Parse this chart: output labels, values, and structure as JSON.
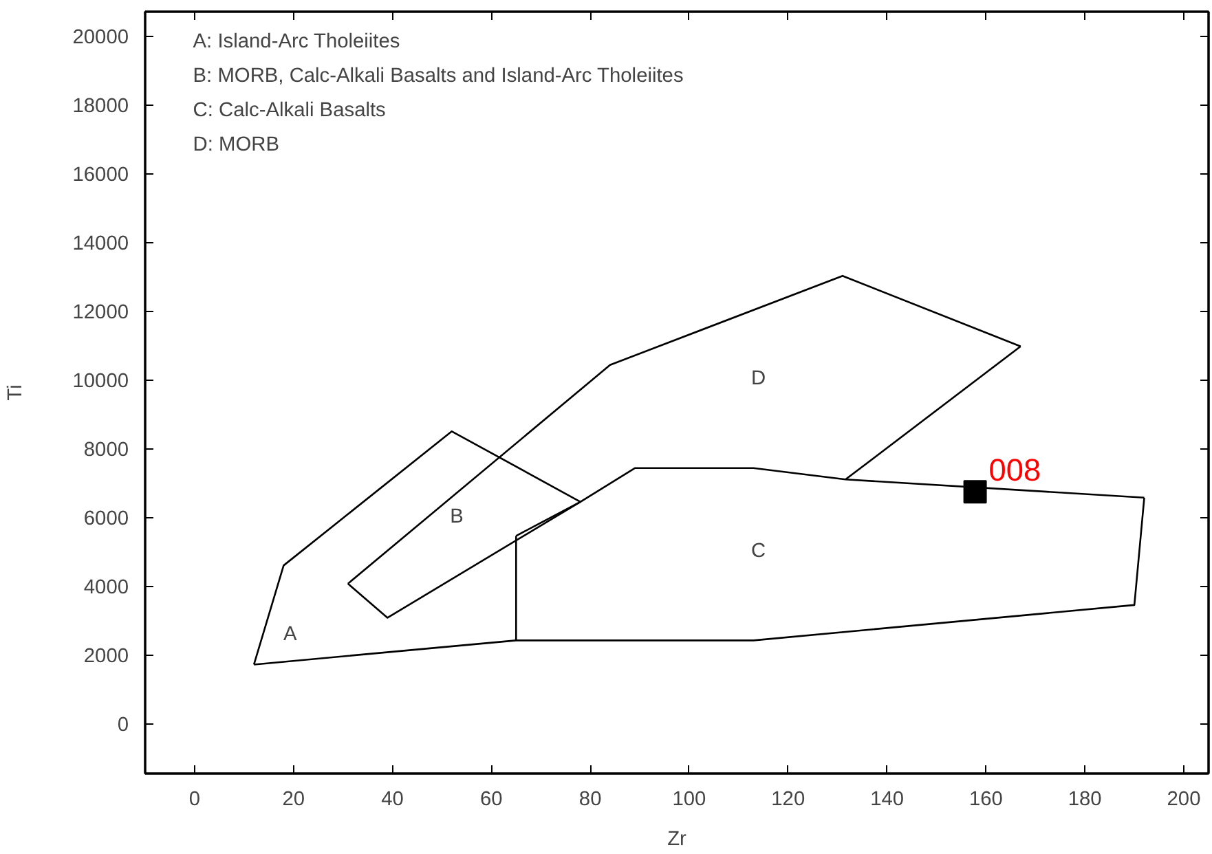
{
  "chart_data": {
    "type": "line",
    "xlabel": "Zr",
    "ylabel": "Ti",
    "xlim": [
      -10,
      205
    ],
    "ylim": [
      -1450,
      20700
    ],
    "xticks": [
      0,
      20,
      40,
      60,
      80,
      100,
      120,
      140,
      160,
      180,
      200
    ],
    "yticks": [
      0,
      2000,
      4000,
      6000,
      8000,
      10000,
      12000,
      14000,
      16000,
      18000,
      20000
    ],
    "grid": false,
    "marker": "none",
    "line_style": "solid",
    "series": [
      {
        "color": "#000000",
        "x": [
          12,
          18,
          52,
          78
        ],
        "values": [
          1720,
          4600,
          8500,
          6450
        ]
      },
      {
        "color": "#000000",
        "x": [
          12,
          65,
          113,
          190,
          192
        ],
        "values": [
          1720,
          2420,
          2420,
          3450,
          6570
        ]
      },
      {
        "color": "#000000",
        "x": [
          65,
          78,
          89,
          113,
          131.6,
          192
        ],
        "values": [
          5460,
          6450,
          7430,
          7430,
          7100,
          6570
        ]
      },
      {
        "color": "#000000",
        "x": [
          65,
          65
        ],
        "values": [
          2420,
          5460
        ]
      },
      {
        "color": "#000000",
        "x": [
          31,
          39,
          78
        ],
        "values": [
          4070,
          3080,
          6450
        ]
      },
      {
        "color": "#000000",
        "x": [
          31,
          84,
          131,
          167
        ],
        "values": [
          4070,
          10430,
          13020,
          10970
        ]
      },
      {
        "color": "#000000",
        "x": [
          131.6,
          167
        ],
        "values": [
          7100,
          10970
        ]
      },
      {
        "type": "scatter",
        "marker": "square",
        "color": "#000000",
        "x": [
          157.8
        ],
        "values": [
          6740
        ]
      }
    ],
    "annotations": [
      "A: Island-Arc Tholeiites",
      "B: MORB, Calc-Alkali Basalts and Island-Arc Tholeiites",
      "C: Calc-Alkali Basalts",
      "D: MORB",
      "A",
      "B",
      "C",
      "D",
      {
        "text": "008",
        "x": 157.8,
        "y": 6740
      }
    ]
  }
}
